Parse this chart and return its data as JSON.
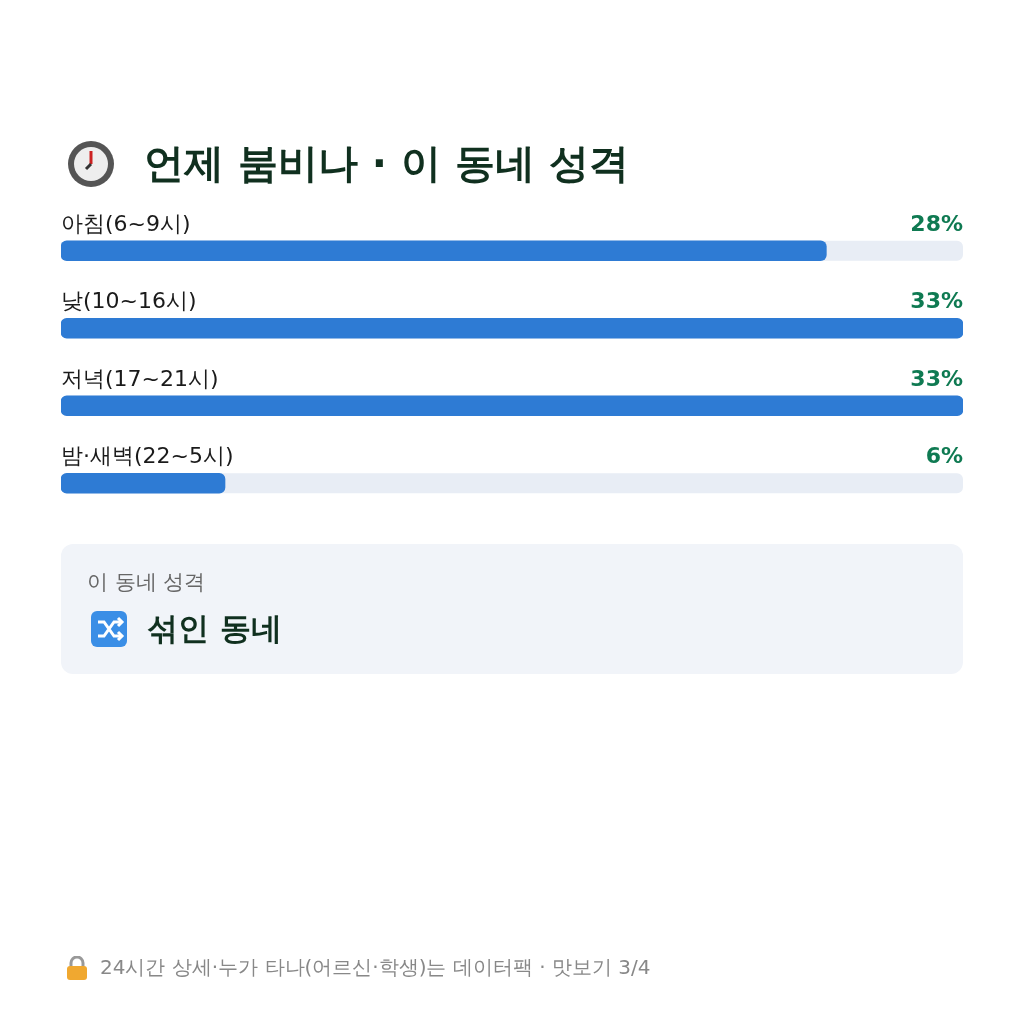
{
  "chart_data": {
    "type": "bar",
    "orientation": "horizontal",
    "title": "언제 붐비나 · 이 동네 성격",
    "categories": [
      "아침(6~9시)",
      "낮(10~16시)",
      "저녁(17~21시)",
      "밤·새벽(22~5시)"
    ],
    "values": [
      28,
      33,
      33,
      6
    ],
    "color": "#2e7bd4",
    "data_labels": true,
    "value_labels": [
      "28%",
      "33%",
      "33%",
      "6%"
    ],
    "annotations": [
      "이 동네 성격",
      "섞인 동네",
      "24시간 상세·누가 타나(어르신·학생)는 데이터팩 · 맛보기 3/4"
    ]
  }
}
